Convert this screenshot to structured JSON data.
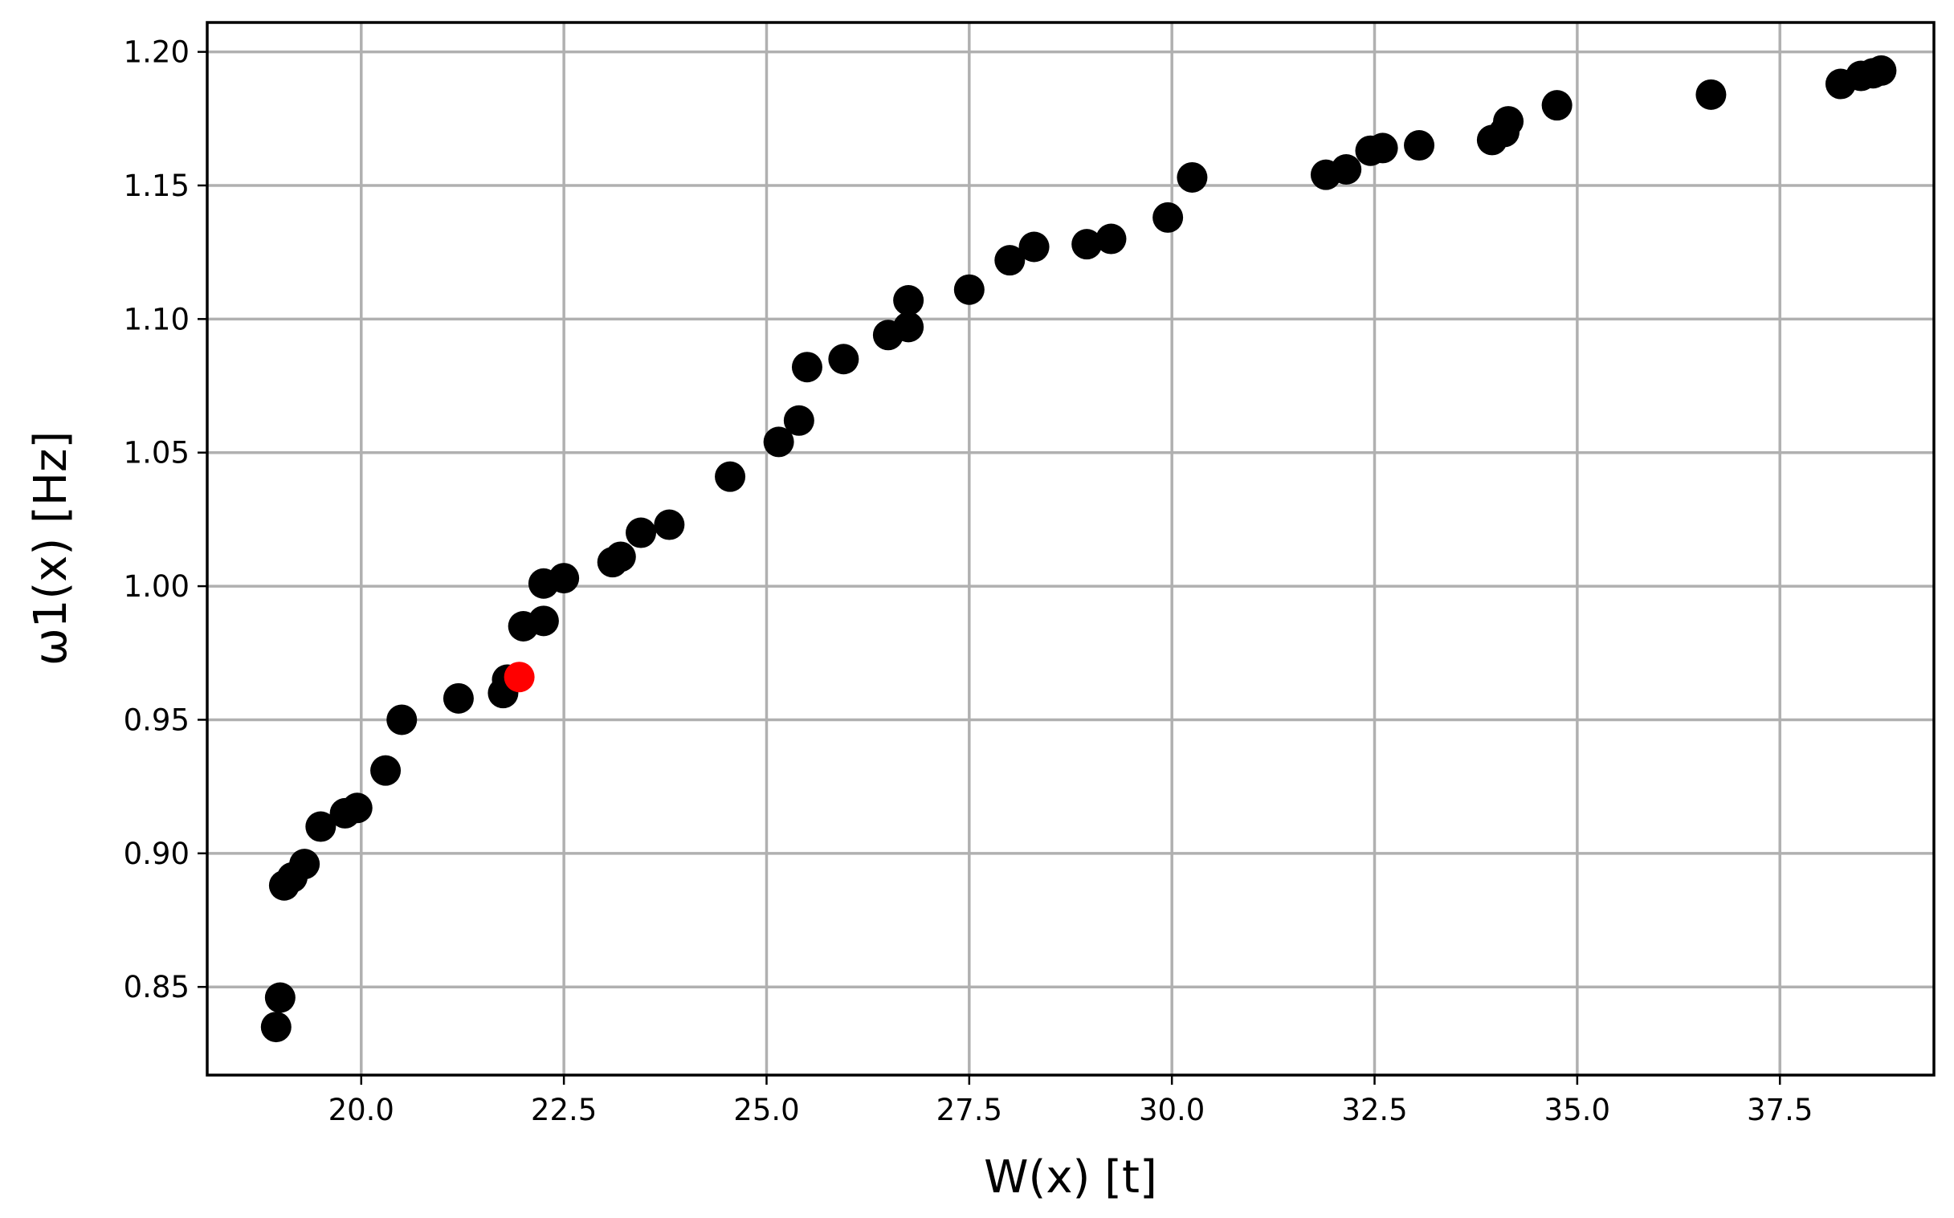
{
  "chart_data": {
    "type": "scatter",
    "xlabel": "W(x) [t]",
    "ylabel": "ω1(x) [Hz]",
    "xlim": [
      18.1,
      39.4
    ],
    "ylim": [
      0.817,
      1.211
    ],
    "grid": true,
    "x_ticks": [
      20.0,
      22.5,
      25.0,
      27.5,
      30.0,
      32.5,
      35.0,
      37.5
    ],
    "x_tick_labels": [
      "20.0",
      "22.5",
      "25.0",
      "27.5",
      "30.0",
      "32.5",
      "35.0",
      "37.5"
    ],
    "y_ticks": [
      0.85,
      0.9,
      0.95,
      1.0,
      1.05,
      1.1,
      1.15,
      1.2
    ],
    "y_tick_labels": [
      "0.85",
      "0.90",
      "0.95",
      "1.00",
      "1.05",
      "1.10",
      "1.15",
      "1.20"
    ],
    "colors": {
      "series": "#000000",
      "highlight": "#ff0000"
    },
    "series": [
      {
        "color": "#000000",
        "points": [
          [
            18.95,
            0.835
          ],
          [
            19.0,
            0.846
          ],
          [
            19.05,
            0.888
          ],
          [
            19.15,
            0.891
          ],
          [
            19.3,
            0.896
          ],
          [
            19.5,
            0.91
          ],
          [
            19.8,
            0.915
          ],
          [
            19.95,
            0.917
          ],
          [
            20.3,
            0.931
          ],
          [
            20.5,
            0.95
          ],
          [
            21.2,
            0.958
          ],
          [
            21.75,
            0.96
          ],
          [
            21.8,
            0.965
          ],
          [
            22.0,
            0.985
          ],
          [
            22.25,
            0.987
          ],
          [
            22.25,
            1.001
          ],
          [
            22.5,
            1.003
          ],
          [
            23.1,
            1.009
          ],
          [
            23.2,
            1.011
          ],
          [
            23.45,
            1.02
          ],
          [
            23.8,
            1.023
          ],
          [
            24.55,
            1.041
          ],
          [
            25.15,
            1.054
          ],
          [
            25.4,
            1.062
          ],
          [
            25.5,
            1.082
          ],
          [
            25.95,
            1.085
          ],
          [
            26.5,
            1.094
          ],
          [
            26.75,
            1.097
          ],
          [
            26.75,
            1.107
          ],
          [
            27.5,
            1.111
          ],
          [
            28.0,
            1.122
          ],
          [
            28.3,
            1.127
          ],
          [
            28.95,
            1.128
          ],
          [
            29.25,
            1.13
          ],
          [
            29.95,
            1.138
          ],
          [
            30.25,
            1.153
          ],
          [
            31.9,
            1.154
          ],
          [
            32.15,
            1.156
          ],
          [
            32.45,
            1.163
          ],
          [
            32.6,
            1.164
          ],
          [
            33.05,
            1.165
          ],
          [
            33.95,
            1.167
          ],
          [
            34.1,
            1.17
          ],
          [
            34.15,
            1.174
          ],
          [
            34.75,
            1.18
          ],
          [
            36.65,
            1.184
          ],
          [
            38.25,
            1.188
          ],
          [
            38.5,
            1.191
          ],
          [
            38.65,
            1.192
          ],
          [
            38.75,
            1.193
          ]
        ]
      },
      {
        "color": "#ff0000",
        "points": [
          [
            21.95,
            0.966
          ]
        ]
      }
    ]
  }
}
